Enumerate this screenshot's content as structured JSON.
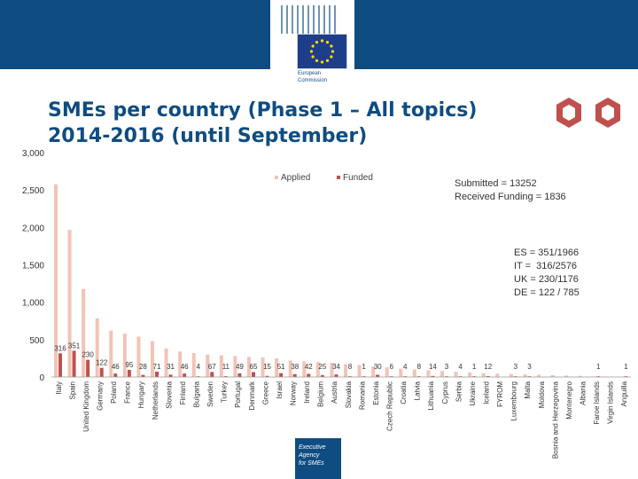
{
  "header": {
    "logo_line1": "European",
    "logo_line2": "Commission"
  },
  "title": {
    "line1": "SMEs per country (Phase 1 – All topics)",
    "line2": "2014-2016 (until September)"
  },
  "legend": {
    "applied": "Applied",
    "funded": "Funded"
  },
  "summary": {
    "submitted": "Submitted = 13252",
    "received": "Received Funding = 1836"
  },
  "shares": {
    "es": "ES = 351/1966",
    "it": "IT =  316/2576",
    "uk": "UK = 230/1176",
    "de": "DE = 122 / 785"
  },
  "footer": {
    "line1": "Executive",
    "line2": "Agency",
    "line3": "for SMEs"
  },
  "chart_data": {
    "type": "bar",
    "title": "SMEs per country (Phase 1 – All topics) 2014-2016 (until September)",
    "ylim": [
      0,
      3000
    ],
    "yticks": [
      0,
      500,
      1000,
      1500,
      2000,
      2500,
      3000
    ],
    "ytick_labels": [
      "0",
      "500",
      "1,000",
      "1,500",
      "2,000",
      "2,500",
      "3,000"
    ],
    "categories": [
      "Italy",
      "Spain",
      "United Kingdom",
      "Germany",
      "Poland",
      "France",
      "Hungary",
      "Netherlands",
      "Slovenia",
      "Finland",
      "Bulgaria",
      "Sweden",
      "Turkey",
      "Portugal",
      "Denmark",
      "Greece",
      "Israel",
      "Norway",
      "Ireland",
      "Belgium",
      "Austria",
      "Slovakia",
      "Romania",
      "Estonia",
      "Czech Republic",
      "Croatia",
      "Latvia",
      "Lithuania",
      "Cyprus",
      "Serbia",
      "Ukraine",
      "Iceland",
      "FYROM",
      "Luxembourg",
      "Malta",
      "Moldova",
      "Bosnia and Herzegovina",
      "Montenegro",
      "Albania",
      "Faroe Islands",
      "Virgin Islands",
      "Anguilla"
    ],
    "series": [
      {
        "name": "Applied",
        "color": "#f2c4b6",
        "values": [
          2576,
          1966,
          1176,
          785,
          620,
          580,
          540,
          480,
          380,
          340,
          320,
          300,
          290,
          280,
          270,
          260,
          250,
          220,
          210,
          200,
          190,
          170,
          160,
          140,
          130,
          110,
          100,
          90,
          80,
          70,
          60,
          50,
          45,
          40,
          35,
          30,
          25,
          20,
          15,
          5,
          3,
          2
        ]
      },
      {
        "name": "Funded",
        "color": "#c0504d",
        "values": [
          316,
          351,
          230,
          122,
          46,
          95,
          28,
          71,
          31,
          46,
          4,
          67,
          11,
          49,
          65,
          15,
          51,
          38,
          42,
          25,
          34,
          8,
          1,
          30,
          6,
          4,
          8,
          14,
          3,
          4,
          1,
          12,
          null,
          3,
          3,
          null,
          null,
          null,
          null,
          1,
          null,
          1
        ]
      }
    ],
    "funded_labels": [
      "316",
      "351",
      "230",
      "122",
      "46",
      "95",
      "28",
      "71",
      "31",
      "46",
      "4",
      "67",
      "11",
      "49",
      "65",
      "15",
      "51",
      "38",
      "42",
      "25",
      "34",
      "8",
      "1",
      "30",
      "6",
      "4",
      "8",
      "14",
      "3",
      "4",
      "1",
      "12",
      "",
      "3",
      "3",
      "",
      "",
      "",
      "",
      "1",
      "",
      "1"
    ]
  }
}
